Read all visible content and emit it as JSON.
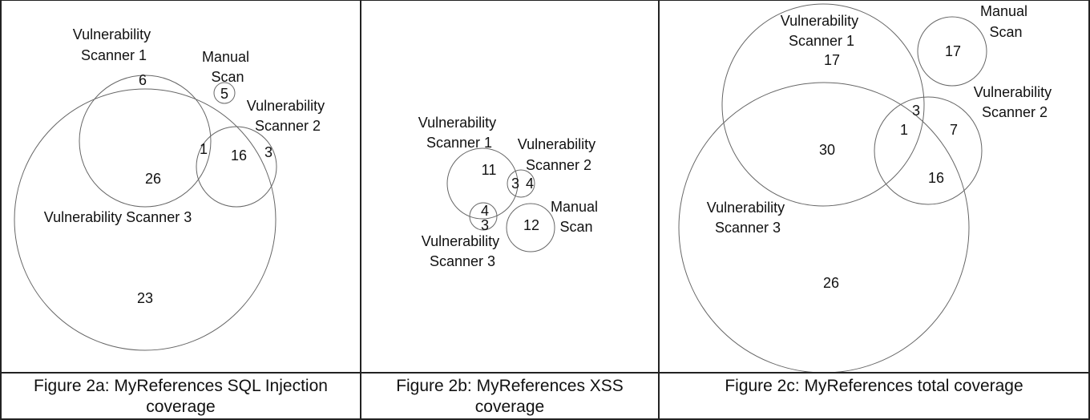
{
  "figures": [
    {
      "caption": [
        "Figure 2a: MyReferences SQL Injection",
        "coverage"
      ],
      "circles": [
        {
          "name": "Vulnerability Scanner 1",
          "label": [
            "Vulnerability",
            "Scanner 1"
          ]
        },
        {
          "name": "Manual Scan",
          "label": [
            "Manual",
            "Scan"
          ]
        },
        {
          "name": "Vulnerability Scanner 2",
          "label": [
            "Vulnerability",
            "Scanner 2"
          ]
        },
        {
          "name": "Vulnerability Scanner 3",
          "label": [
            "Vulnerability Scanner 3"
          ]
        }
      ],
      "counts": [
        "6",
        "5",
        "1",
        "16",
        "3",
        "26",
        "23"
      ]
    },
    {
      "caption": [
        "Figure 2b: MyReferences XSS",
        "coverage"
      ],
      "circles": [
        {
          "name": "Vulnerability Scanner 1",
          "label": [
            "Vulnerability",
            "Scanner 1"
          ]
        },
        {
          "name": "Vulnerability Scanner 2",
          "label": [
            "Vulnerability",
            "Scanner 2"
          ]
        },
        {
          "name": "Manual Scan",
          "label": [
            "Manual",
            "Scan"
          ]
        },
        {
          "name": "Vulnerability Scanner 3",
          "label": [
            "Vulnerability",
            "Scanner 3"
          ]
        }
      ],
      "counts": [
        "11",
        "3",
        "4",
        "4",
        "3",
        "12"
      ]
    },
    {
      "caption": [
        "Figure 2c: MyReferences total coverage"
      ],
      "circles": [
        {
          "name": "Vulnerability Scanner 1",
          "label": [
            "Vulnerability",
            "Scanner 1"
          ]
        },
        {
          "name": "Manual Scan",
          "label": [
            "Manual",
            "Scan"
          ]
        },
        {
          "name": "Vulnerability Scanner 2",
          "label": [
            "Vulnerability",
            "Scanner 2"
          ]
        },
        {
          "name": "Vulnerability Scanner 3",
          "label": [
            "Vulnerability",
            "Scanner 3"
          ]
        }
      ],
      "counts": [
        "17",
        "17",
        "3",
        "1",
        "7",
        "30",
        "16",
        "26"
      ]
    }
  ]
}
